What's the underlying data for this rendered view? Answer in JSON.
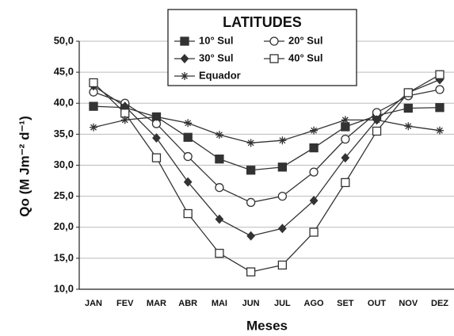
{
  "chart_data": {
    "type": "line",
    "title": "LATITUDES",
    "x_label": "Meses",
    "y_label": "Qo (M Jm⁻² d⁻¹)",
    "categories": [
      "JAN",
      "FEV",
      "MAR",
      "ABR",
      "MAI",
      "JUN",
      "JUL",
      "AGO",
      "SET",
      "OUT",
      "NOV",
      "DEZ"
    ],
    "ylim": [
      10,
      50
    ],
    "yticks": [
      {
        "value": 10,
        "label": "10,0"
      },
      {
        "value": 15,
        "label": "15,0"
      },
      {
        "value": 20,
        "label": "20,0"
      },
      {
        "value": 25,
        "label": "25,0"
      },
      {
        "value": 30,
        "label": "30,0"
      },
      {
        "value": 35,
        "label": "35,0"
      },
      {
        "value": 40,
        "label": "40,0"
      },
      {
        "value": 45,
        "label": "45,0"
      },
      {
        "value": 50,
        "label": "50,0"
      }
    ],
    "grid": true,
    "series": [
      {
        "name": "10° Sul",
        "color": "#333333",
        "marker": "square-filled",
        "values": [
          39.5,
          39.3,
          37.8,
          34.5,
          31.0,
          29.2,
          29.7,
          32.8,
          36.2,
          38.0,
          39.2,
          39.3
        ]
      },
      {
        "name": "20° Sul",
        "color": "#333333",
        "marker": "circle-open",
        "values": [
          41.8,
          40.0,
          36.7,
          31.4,
          26.4,
          24.0,
          25.0,
          28.9,
          34.2,
          38.5,
          41.2,
          42.2
        ]
      },
      {
        "name": "30° Sul",
        "color": "#333333",
        "marker": "diamond-filled",
        "values": [
          42.8,
          39.5,
          34.4,
          27.3,
          21.3,
          18.6,
          19.8,
          24.3,
          31.2,
          37.3,
          41.7,
          43.8
        ]
      },
      {
        "name": "40° Sul",
        "color": "#333333",
        "marker": "square-open",
        "values": [
          43.3,
          38.4,
          31.2,
          22.2,
          15.8,
          12.8,
          13.9,
          19.2,
          27.2,
          35.5,
          41.7,
          44.6
        ]
      },
      {
        "name": "Equador",
        "color": "#333333",
        "marker": "asterisk",
        "values": [
          36.1,
          37.3,
          37.8,
          36.8,
          34.9,
          33.6,
          34.0,
          35.6,
          37.3,
          37.3,
          36.3,
          35.6
        ]
      }
    ]
  }
}
